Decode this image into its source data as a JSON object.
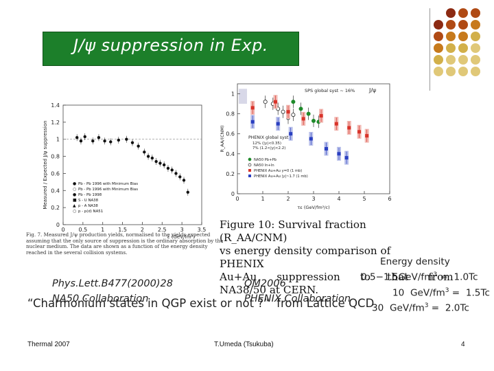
{
  "slide": {
    "title": "J/ψ suppression in Exp.",
    "left_ref": {
      "line1": "Phys.Lett.B477(2000)28",
      "line2": "NA50 Collaboration"
    },
    "mid_ref": {
      "line1": "QM2006",
      "line2": "PHENIX Collaboration"
    },
    "energy": {
      "heading": "Energy density",
      "rows": [
        {
          "value": "0.5−1.5GeV/fm",
          "sup": "3",
          "eq": " =  1.0Tc"
        },
        {
          "value": "10  GeV/fm",
          "sup": "3",
          "eq": " =  1.5Tc"
        },
        {
          "value": "30  GeV/fm",
          "sup": "3",
          "eq": " =  2.0Tc"
        }
      ]
    },
    "quote": "“Charmonium states in QGP exist or not ?”  from Lattice QCD",
    "footer": {
      "left": "Thermal 2007",
      "center": "T.Umeda (Tsukuba)",
      "right": "4"
    },
    "dot_colors": [
      "#8c2a12",
      "#b04a14",
      "#c77a1c",
      "#d2b04a",
      "#e0c878"
    ]
  },
  "left_figure": {
    "ylabel": "Measured / Expected J/ψ suppression",
    "xlabel": "ε (GeV/fm³)",
    "yticks": [
      "0",
      "0.2",
      "0.4",
      "0.6",
      "0.8",
      "1",
      "1.2",
      "1.4"
    ],
    "xticks": [
      "0",
      "0.5",
      "1",
      "1.5",
      "2",
      "2.5",
      "3",
      "3.5"
    ],
    "legend": [
      "Pb - Pb 1996 with Minimum Bias",
      "Pb - Pb 1996 with Minimum Bias",
      "Pb - Pb 1998",
      "S - U     NA38",
      "p - A     NA38",
      "p - p(d)  NA51"
    ],
    "caption": "Fig. 7. Measured J/ψ production yields, normalised to the yields expected assuming that the only source of suppression is the ordinary absorption by the nuclear medium. The data are shown as a function of the energy density reached in the several collision systems."
  },
  "right_figure": {
    "ylabel": "R_AA/(CNM)",
    "xlabel": "τε (GeV/fm²/c)",
    "yticks": [
      "0",
      "0.2",
      "0.4",
      "0.6",
      "0.8",
      "1"
    ],
    "xticks": [
      "0",
      "1",
      "2",
      "3",
      "4",
      "5",
      "6"
    ],
    "label_sps": "SPS global syst ~ 16%",
    "label_jpsi": "J/ψ",
    "label_phenix": "PHENIX global syst",
    "label_phenix2": "12% (|y|<0.35)",
    "label_phenix3": "7% (1.2<|y|<2.2)",
    "legend": [
      "NA50 Pb+Pb",
      "NA50 In+In",
      "PHENIX Au+Au y=0 (1 mb)",
      "PHENIX Au+Au |y|~1.7 (1 mb)"
    ],
    "caption": [
      "Figure 10: Survival fraction (R_AA/CNM)",
      "vs energy density comparison of PHENIX",
      "Au+Au      suppression      to     that      from",
      "NA38/50 at CERN."
    ]
  },
  "chart_data": [
    {
      "type": "scatter",
      "xlabel": "ε (GeV/fm³)",
      "ylabel": "Measured / Expected J/ψ suppression",
      "xlim": [
        0,
        3.5
      ],
      "ylim": [
        0,
        1.4
      ],
      "series": [
        {
          "name": "Pb - Pb 1998",
          "x": [
            0.35,
            0.45,
            0.55,
            0.75,
            0.9,
            1.05,
            1.2,
            1.4,
            1.6,
            1.75,
            1.9,
            2.05,
            2.15,
            2.25,
            2.35,
            2.45,
            2.55,
            2.65,
            2.75,
            2.85,
            2.95,
            3.05,
            3.15
          ],
          "y": [
            1.02,
            0.98,
            1.03,
            0.98,
            1.02,
            0.98,
            0.97,
            0.99,
            1.0,
            0.96,
            0.92,
            0.85,
            0.8,
            0.78,
            0.74,
            0.72,
            0.7,
            0.66,
            0.64,
            0.6,
            0.56,
            0.52,
            0.38
          ]
        }
      ]
    },
    {
      "type": "scatter",
      "xlabel": "τε (GeV/fm²/c)",
      "ylabel": "R_AA/(CNM)",
      "xlim": [
        0,
        6
      ],
      "ylim": [
        0,
        1.1
      ],
      "series": [
        {
          "name": "NA50 Pb+Pb",
          "x": [
            2.2,
            2.5,
            2.8,
            3.0,
            3.2
          ],
          "y": [
            0.92,
            0.85,
            0.8,
            0.73,
            0.72
          ]
        },
        {
          "name": "NA50 In+In",
          "x": [
            1.1,
            1.4,
            1.6,
            1.8,
            2.0,
            2.2
          ],
          "y": [
            0.92,
            0.9,
            0.85,
            0.82,
            0.76,
            0.79
          ]
        },
        {
          "name": "PHENIX Au+Au y=0 (1 mb)",
          "x": [
            0.6,
            1.5,
            2.0,
            2.6,
            3.3,
            3.9,
            4.4,
            4.8,
            5.1
          ],
          "y": [
            0.86,
            0.92,
            0.82,
            0.75,
            0.78,
            0.7,
            0.66,
            0.62,
            0.58
          ]
        },
        {
          "name": "PHENIX Au+Au |y|~1.7 (1 mb)",
          "x": [
            0.6,
            1.6,
            2.1,
            2.9,
            3.5,
            4.0,
            4.3
          ],
          "y": [
            0.72,
            0.7,
            0.6,
            0.55,
            0.45,
            0.4,
            0.36
          ]
        }
      ]
    }
  ]
}
